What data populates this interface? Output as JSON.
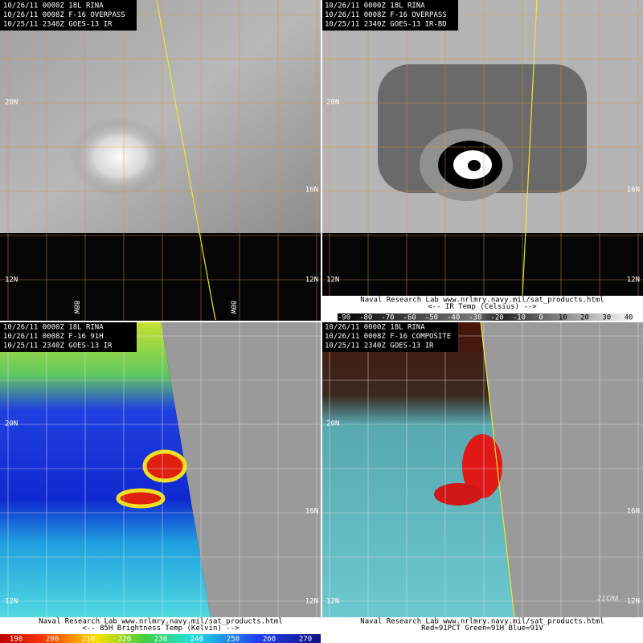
{
  "panels": [
    {
      "header": [
        "10/26/11 0000Z 18L RINA",
        "10/26/11 0008Z F-16 OVERPASS",
        "10/25/11 2340Z GOES-13 IR"
      ],
      "lat_labels": [
        "20N",
        "16N",
        "12N",
        "12N"
      ],
      "lon_labels": [
        "88W",
        "80W"
      ]
    },
    {
      "header": [
        "10/26/11 0000Z 18L RINA",
        "10/26/11 0008Z F-16 OVERPASS",
        "10/25/11 2340Z GOES-13 IR-BD"
      ],
      "lat_labels": [
        "20N",
        "16N",
        "12N",
        "12N"
      ],
      "footer": [
        "Naval Research Lab  www.nrlmry.navy.mil/sat_products.html",
        "<--  IR Temp (Celsius)  -->"
      ],
      "colorbar_ticks": [
        -90,
        -80,
        -70,
        -60,
        -50,
        -40,
        -30,
        -20,
        -10,
        0,
        10,
        20,
        30,
        40
      ]
    },
    {
      "header": [
        "10/26/11 0000Z 18L RINA",
        "10/26/11 0008Z F-16 91H",
        "10/25/11 2340Z GOES-13 IR"
      ],
      "lat_labels": [
        "20N",
        "16N",
        "12N",
        "12N"
      ],
      "footer": [
        "Naval Research Lab  www.nrlmry.navy.mil/sat_products.html",
        "<--  85H Brightness Temp (Kelvin)  -->"
      ],
      "colorbar_ticks": [
        190,
        200,
        210,
        220,
        230,
        240,
        250,
        260,
        270
      ]
    },
    {
      "header": [
        "10/26/11 0000Z 18L RINA",
        "10/26/11 0008Z F-16 COMPOSITE",
        "10/25/11 2340Z GOES-13 IR"
      ],
      "lat_labels": [
        "20N",
        "16N",
        "12N",
        "12N"
      ],
      "footer": [
        "Naval Research Lab  www.nrlmry.navy.mil/sat_products.html",
        "Red=91PCT  Green=91H  Blue=91V"
      ]
    }
  ],
  "watermark": "21CMA"
}
